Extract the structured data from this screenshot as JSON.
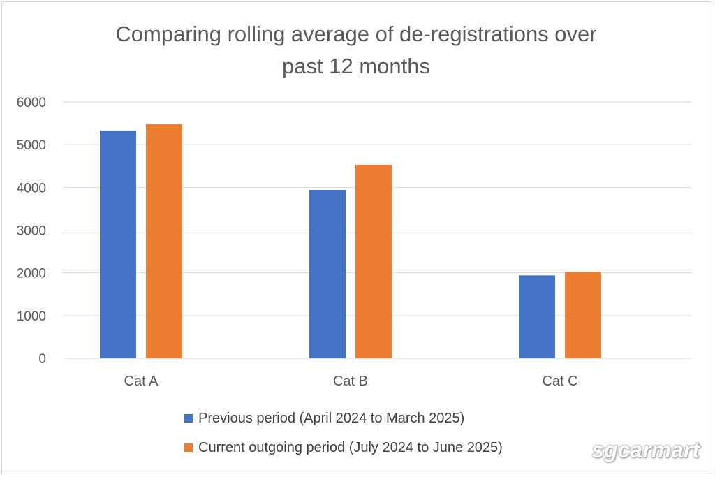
{
  "chart_data": {
    "type": "bar",
    "title": "Comparing rolling average of de-registrations over past 12 months",
    "title_lines": [
      "Comparing rolling average of de-registrations over",
      "past 12 months"
    ],
    "categories": [
      "Cat A",
      "Cat B",
      "Cat C"
    ],
    "series": [
      {
        "name": "Previous period (April 2024 to March 2025)",
        "values": [
          5330,
          3940,
          1940
        ],
        "color": "#4472C4"
      },
      {
        "name": "Current outgoing period (July 2024 to June 2025)",
        "values": [
          5480,
          4530,
          2020
        ],
        "color": "#ED7D31"
      }
    ],
    "xlabel": "",
    "ylabel": "",
    "ylim": [
      0,
      6000
    ],
    "yticks": [
      0,
      1000,
      2000,
      3000,
      4000,
      5000,
      6000
    ],
    "grid": true,
    "legend_position": "bottom"
  },
  "watermark": "sgcarmart"
}
